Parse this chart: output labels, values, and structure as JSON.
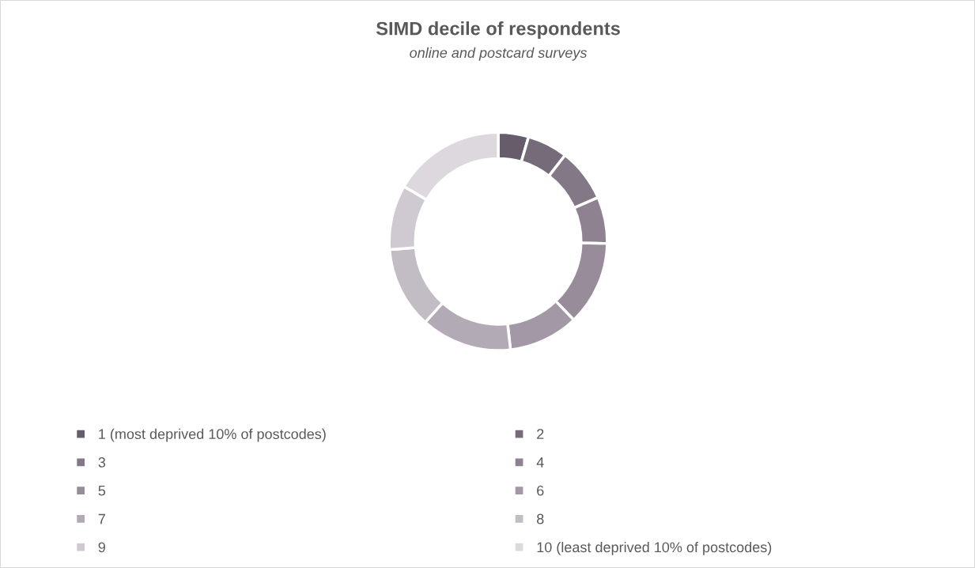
{
  "chart_data": {
    "type": "donut",
    "title": "SIMD decile of respondents",
    "subtitle": "online and postcard surveys",
    "categories": [
      "1 (most deprived 10% of postcodes)",
      "2",
      "3",
      "4",
      "5",
      "6",
      "7",
      "8",
      "9",
      "10 (least deprived 10% of postcodes)"
    ],
    "values": [
      4.5,
      6.0,
      7.9,
      6.9,
      12.5,
      10.4,
      13.5,
      12.1,
      9.6,
      16.6
    ],
    "colors": [
      "#675d6a",
      "#766b78",
      "#837886",
      "#8e8290",
      "#998c9a",
      "#a398a5",
      "#b2abb6",
      "#c2bcc4",
      "#cfcad1",
      "#dcd8de"
    ],
    "legend": "bottom"
  }
}
